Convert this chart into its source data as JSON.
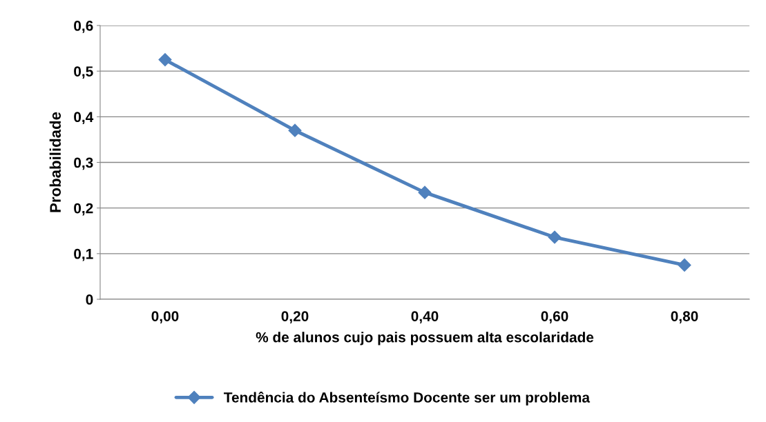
{
  "chart_data": {
    "type": "line",
    "xlabel": "% de alunos cujo pais possuem alta escolaridade",
    "ylabel": "Probabilidade",
    "categories": [
      "0,00",
      "0,20",
      "0,40",
      "0,60",
      "0,80"
    ],
    "series": [
      {
        "name": "Tendência do Absenteísmo Docente ser um problema",
        "color": "#4f81bd",
        "values": [
          0.525,
          0.37,
          0.234,
          0.136,
          0.075
        ]
      }
    ],
    "ylim": [
      0,
      0.6
    ],
    "yticks": [
      {
        "value": 0,
        "label": "0"
      },
      {
        "value": 0.1,
        "label": "0,1"
      },
      {
        "value": 0.2,
        "label": "0,2"
      },
      {
        "value": 0.3,
        "label": "0,3"
      },
      {
        "value": 0.4,
        "label": "0,4"
      },
      {
        "value": 0.5,
        "label": "0,5"
      },
      {
        "value": 0.6,
        "label": "0,6"
      }
    ],
    "grid": "y",
    "legend": "bottom",
    "marker": "diamond",
    "line_style": "solid"
  }
}
